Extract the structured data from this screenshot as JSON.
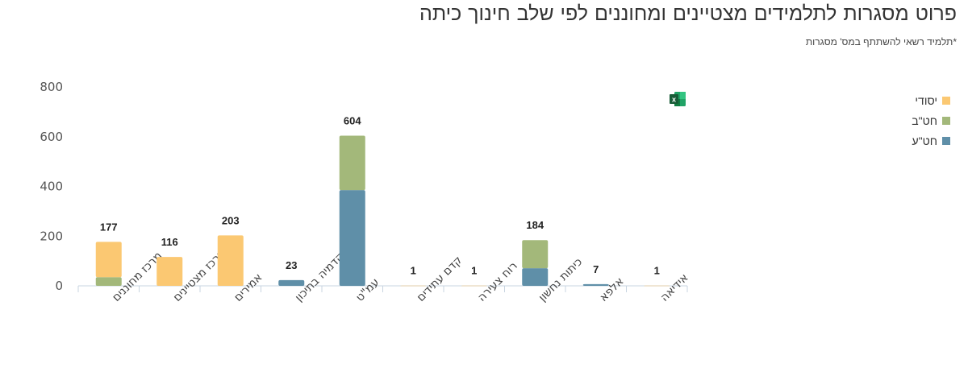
{
  "chart_data": {
    "type": "bar",
    "stacked": true,
    "title": "פרוט מסגרות לתלמידים מצטיינים ומחוננים לפי שלב חינוך כיתה",
    "subtitle": "*תלמיד רשאי להשתתף במס' מסגרות",
    "categories": [
      "מרכז מחוננים",
      "מרכז מצטיינים",
      "אמירים",
      "אקדמיה בתיכון",
      "עמ\"ט",
      "קדם עתידים",
      "רוח צעירה",
      "כיתות נחשון",
      "אלפא",
      "אידיאה"
    ],
    "series": [
      {
        "name": "חט\"ע",
        "color": "#5f8fa8",
        "values": [
          0,
          0,
          0,
          23,
          385,
          0,
          0,
          71,
          7,
          0
        ]
      },
      {
        "name": "חט\"ב",
        "color": "#a3b87a",
        "values": [
          35,
          0,
          0,
          0,
          219,
          0,
          0,
          113,
          0,
          0
        ]
      },
      {
        "name": "יסודי",
        "color": "#fbc872",
        "values": [
          142,
          116,
          203,
          0,
          0,
          1,
          1,
          0,
          0,
          1
        ]
      }
    ],
    "totals": [
      "177",
      "116",
      "203",
      "23",
      "604",
      "1",
      "1",
      "184",
      "7",
      "1"
    ],
    "ylim": [
      0,
      800
    ],
    "yticks": [
      "0",
      "200",
      "400",
      "600",
      "800"
    ],
    "grid": false,
    "legend": "right"
  },
  "toolbar": {
    "export_icon": "excel-icon"
  }
}
